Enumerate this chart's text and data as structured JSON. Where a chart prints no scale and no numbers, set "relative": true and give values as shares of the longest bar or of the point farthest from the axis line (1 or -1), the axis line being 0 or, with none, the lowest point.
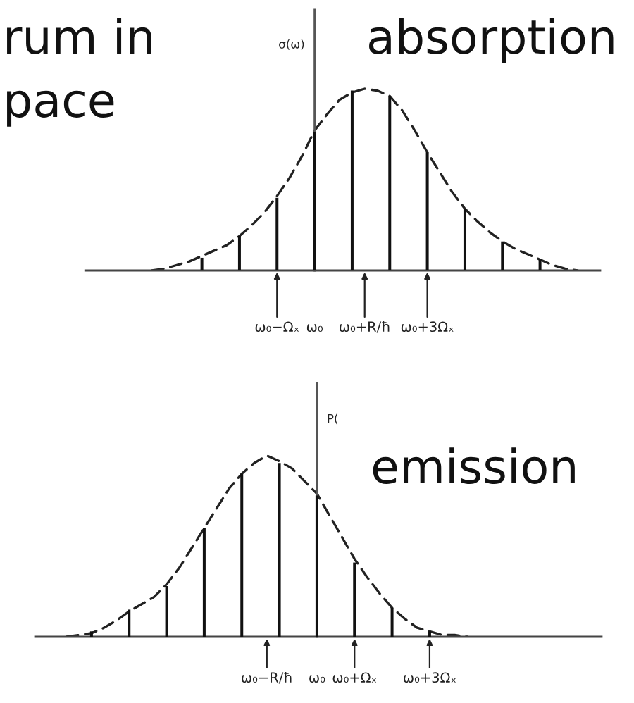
{
  "chart_data": [
    {
      "type": "bar",
      "title": "absorption",
      "ylabel": "σ(ω)",
      "relative": true,
      "line_style": "dashed",
      "categories": [
        null,
        null,
        null,
        null,
        null,
        null,
        null,
        null,
        null,
        null,
        null,
        null,
        null,
        null,
        null,
        "ω₀−Ωₓ",
        null,
        null,
        "ω₀",
        null,
        null,
        null,
        "ω₀+R/ħ",
        null,
        null,
        null,
        null,
        "ω₀+3Ωₓ",
        null,
        null,
        null,
        null,
        null,
        null,
        null,
        null,
        null,
        null,
        null,
        null,
        null
      ],
      "series": [
        {
          "color": "#111111",
          "values": [
            null,
            null,
            null,
            null,
            null,
            null,
            null,
            null,
            null,
            0.07,
            null,
            null,
            0.19,
            null,
            null,
            0.4,
            null,
            null,
            0.76,
            null,
            null,
            0.99,
            null,
            null,
            0.96,
            null,
            null,
            0.65,
            null,
            null,
            0.34,
            null,
            null,
            0.16,
            null,
            null,
            0.06,
            null,
            null,
            null,
            null
          ]
        },
        {
          "type": "line",
          "color": "#222222",
          "values": [
            null,
            null,
            null,
            null,
            null,
            0,
            0.01,
            0.03,
            0.05,
            0.08,
            0.11,
            0.14,
            0.19,
            0.25,
            0.32,
            0.41,
            0.51,
            0.63,
            0.77,
            0.86,
            0.94,
            0.98,
            1.0,
            0.99,
            0.96,
            0.88,
            0.77,
            0.65,
            0.54,
            0.43,
            0.34,
            0.27,
            0.21,
            0.16,
            0.12,
            0.09,
            0.06,
            0.03,
            0.01,
            0,
            null
          ]
        }
      ],
      "annotations": [
        "rum in",
        "pace"
      ]
    },
    {
      "type": "bar",
      "title": "emission",
      "ylabel": "P(",
      "relative": true,
      "line_style": "dashed",
      "categories": [
        null,
        null,
        null,
        null,
        null,
        null,
        null,
        null,
        null,
        null,
        null,
        null,
        null,
        null,
        null,
        null,
        null,
        null,
        "ω₀−R/ħ",
        null,
        null,
        null,
        "ω₀",
        null,
        null,
        "ω₀+Ωₓ",
        null,
        null,
        null,
        null,
        null,
        "ω₀+3Ωₓ",
        null,
        null,
        null,
        null,
        null,
        null,
        null,
        null,
        null,
        null,
        null,
        null,
        null
      ],
      "series": [
        {
          "color": "#111111",
          "values": [
            null,
            null,
            null,
            null,
            0.03,
            null,
            null,
            0.15,
            null,
            null,
            0.28,
            null,
            null,
            0.6,
            null,
            null,
            0.9,
            null,
            null,
            0.96,
            null,
            null,
            0.78,
            null,
            null,
            0.41,
            null,
            null,
            0.16,
            null,
            null,
            0.03,
            null,
            null,
            null,
            null,
            null,
            null,
            null,
            null,
            null,
            null,
            null,
            null,
            null
          ]
        },
        {
          "type": "line",
          "color": "#222222",
          "values": [
            null,
            null,
            0,
            0.01,
            0.02,
            0.05,
            0.09,
            0.14,
            0.18,
            0.22,
            0.29,
            0.38,
            0.49,
            0.6,
            0.71,
            0.82,
            0.9,
            0.96,
            1.0,
            0.97,
            0.93,
            0.86,
            0.79,
            0.67,
            0.55,
            0.43,
            0.33,
            0.24,
            0.16,
            0.1,
            0.05,
            0.03,
            0.01,
            0.01,
            0,
            null,
            null,
            null,
            null,
            null,
            null,
            null,
            null,
            null,
            null
          ]
        }
      ]
    }
  ]
}
